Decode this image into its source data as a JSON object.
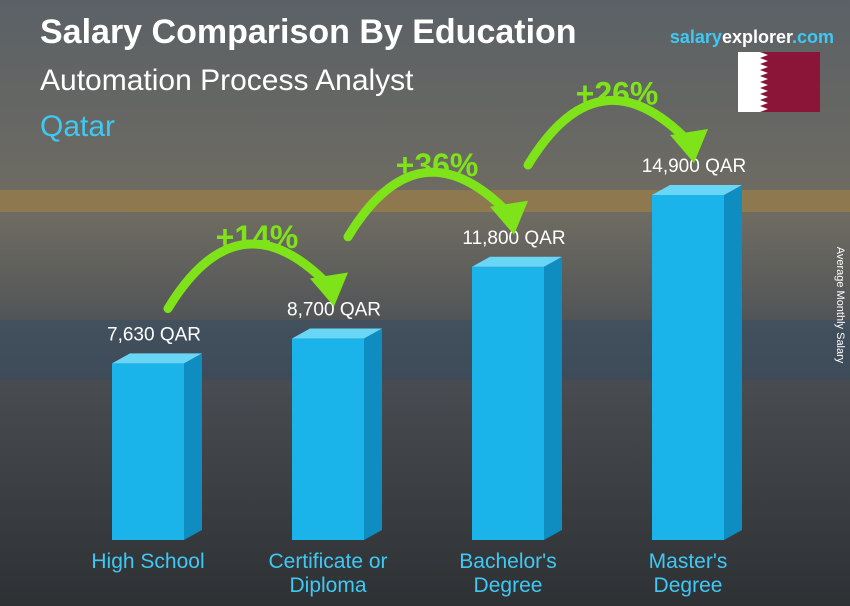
{
  "chart_data": {
    "type": "bar",
    "title": "Salary Comparison By Education",
    "subtitle": "Automation Process Analyst",
    "country": "Qatar",
    "brand": [
      "salary",
      "explorer",
      ".com"
    ],
    "axis_label": "Average Monthly Salary",
    "categories": [
      "High School",
      "Certificate or Diploma",
      "Bachelor's Degree",
      "Master's Degree"
    ],
    "values": [
      7630,
      8700,
      11800,
      14900
    ],
    "value_labels": [
      "7,630 QAR",
      "8,700 QAR",
      "11,800 QAR",
      "14,900 QAR"
    ],
    "annotations": [
      "+14%",
      "+36%",
      "+26%"
    ],
    "color": "#1ab4ea"
  }
}
